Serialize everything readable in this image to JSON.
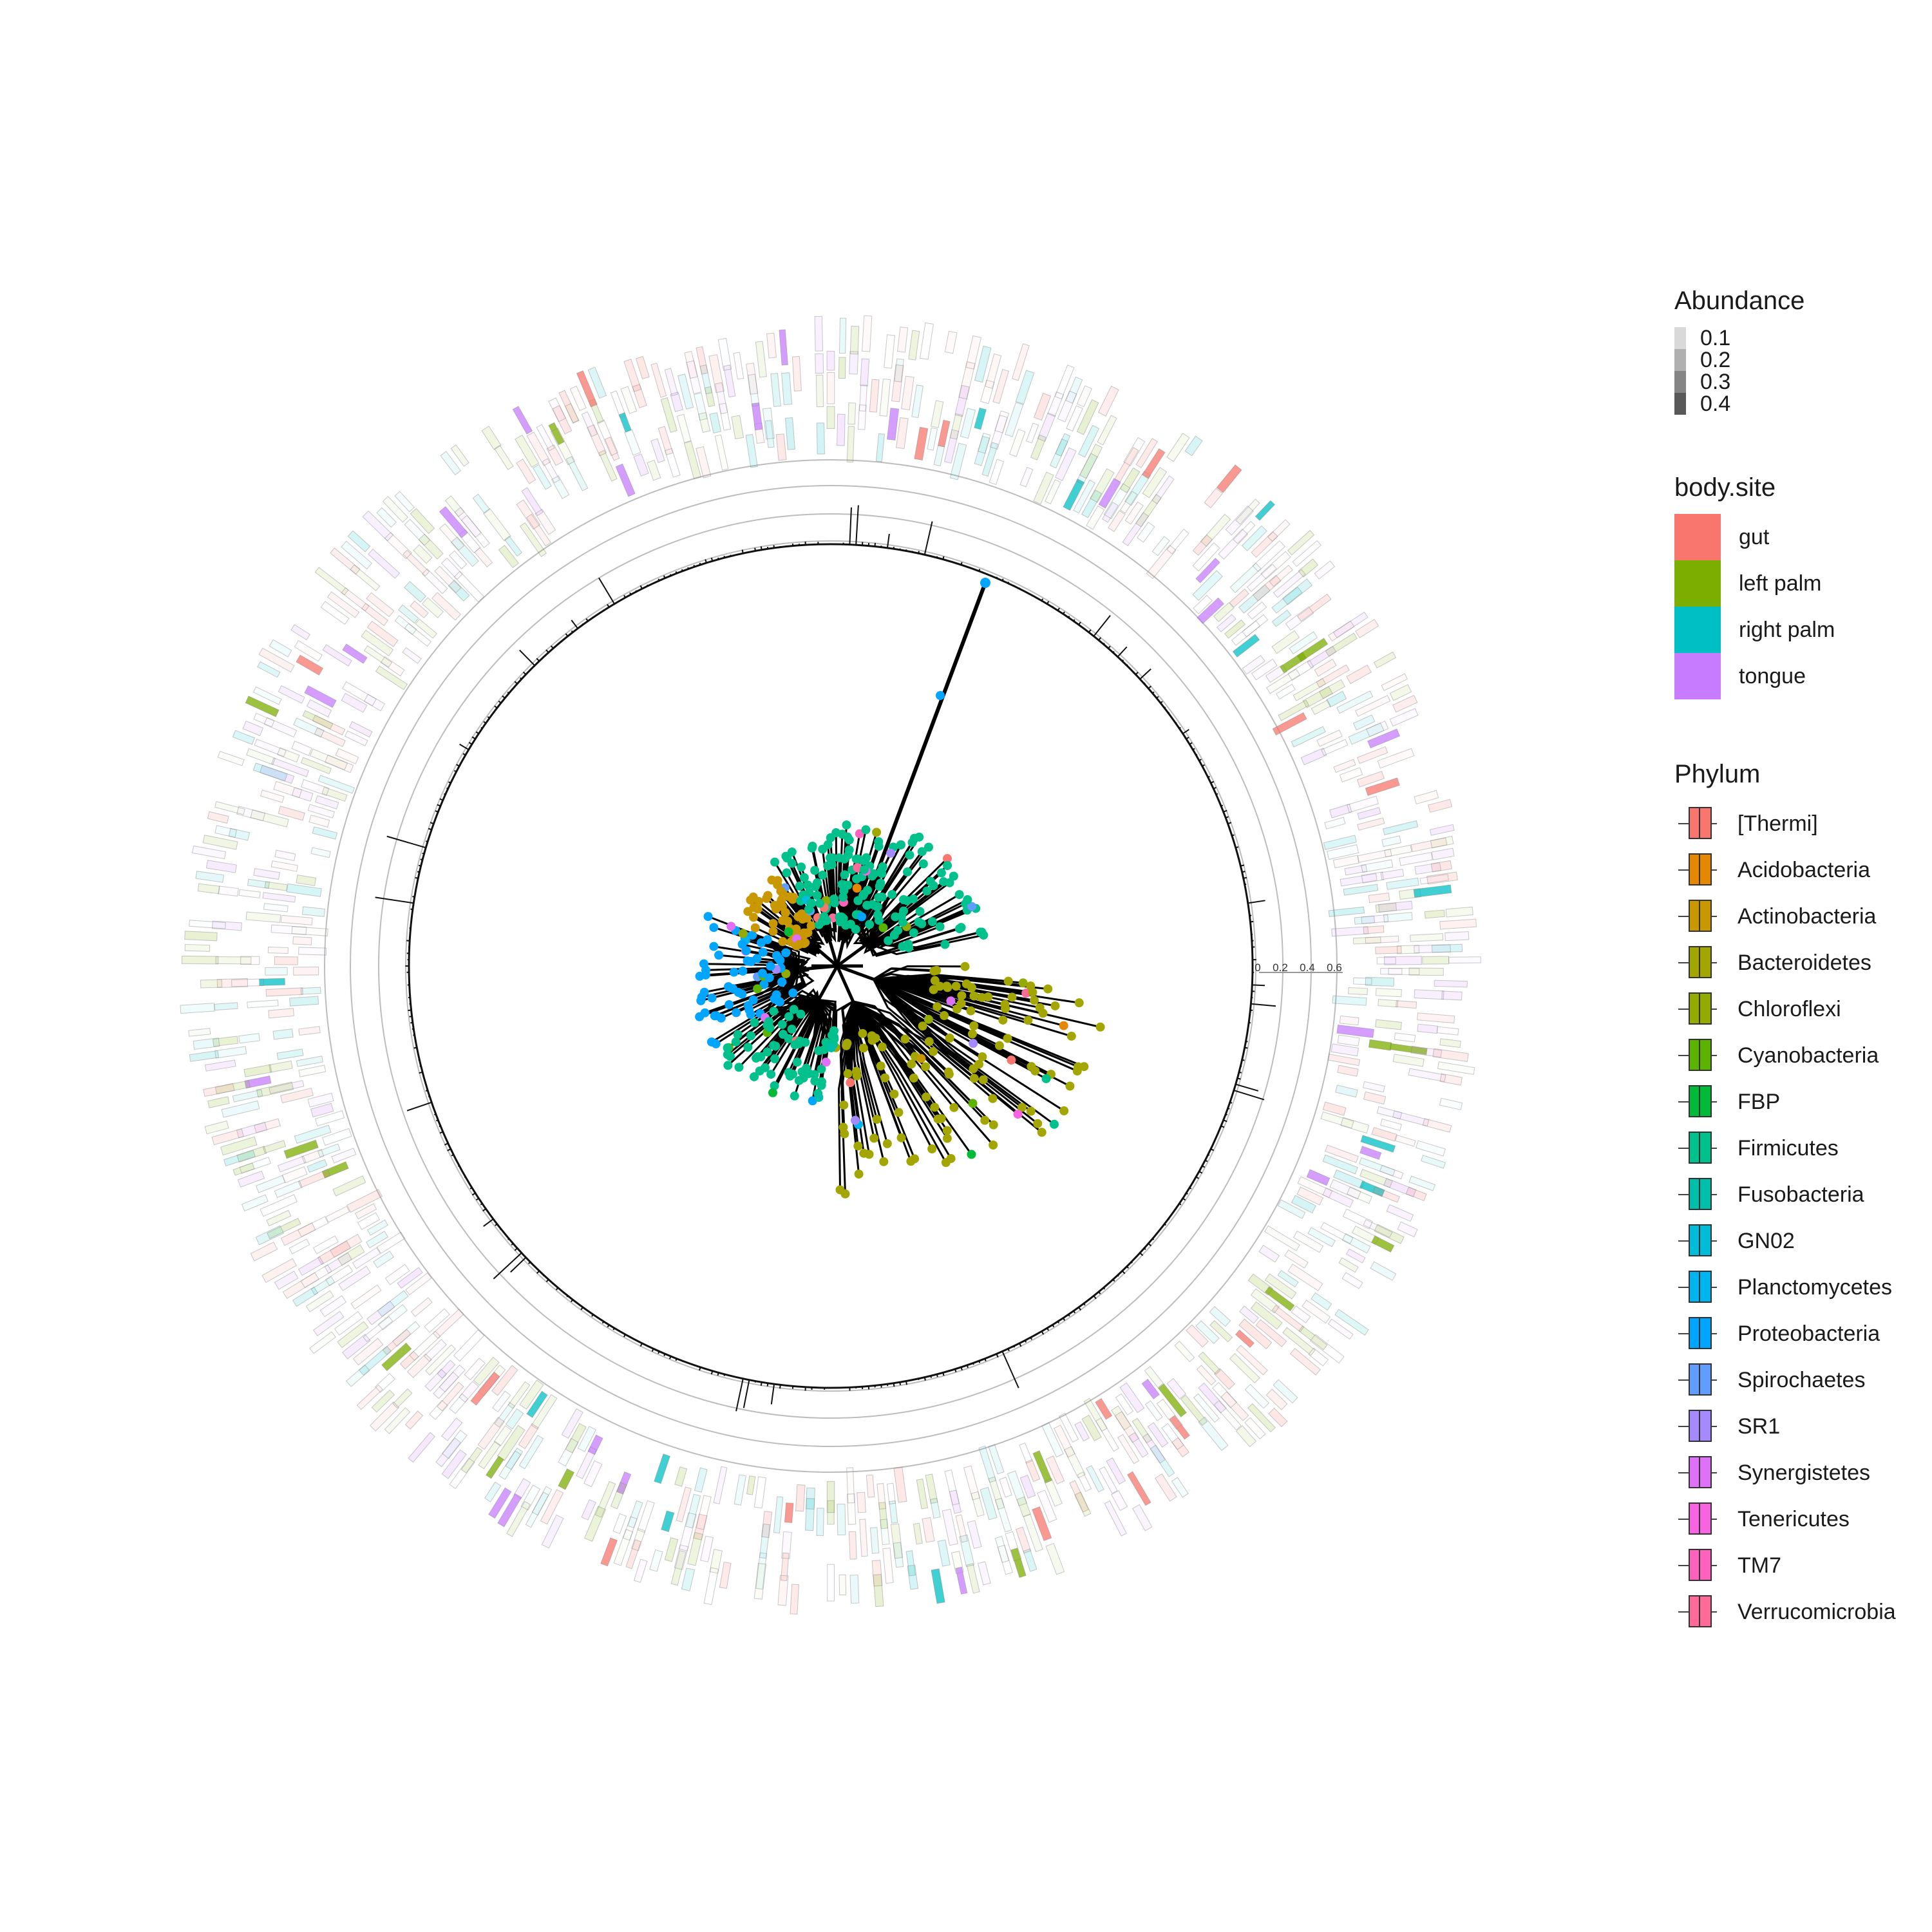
{
  "chart_data": {
    "type": "circular phylogenetic tree with heatmap rings",
    "scale_ticks": [
      "0",
      "0.2",
      "0.4",
      "0.6"
    ],
    "legends": {
      "abundance": {
        "title": "Abundance",
        "levels": [
          "0.1",
          "0.2",
          "0.3",
          "0.4"
        ],
        "colors": [
          "#d9d9d9",
          "#b0b0b0",
          "#858585",
          "#595959"
        ]
      },
      "body_site": {
        "title": "body.site",
        "items": [
          {
            "label": "gut",
            "color": "#F8766D"
          },
          {
            "label": "left palm",
            "color": "#7CAE00"
          },
          {
            "label": "right palm",
            "color": "#00BFC4"
          },
          {
            "label": "tongue",
            "color": "#C77CFF"
          }
        ]
      },
      "phylum": {
        "title": "Phylum",
        "items": [
          {
            "label": "[Thermi]",
            "color": "#F8766D"
          },
          {
            "label": "Acidobacteria",
            "color": "#E58700"
          },
          {
            "label": "Actinobacteria",
            "color": "#C99800"
          },
          {
            "label": "Bacteroidetes",
            "color": "#A3A500"
          },
          {
            "label": "Chloroflexi",
            "color": "#93AA00"
          },
          {
            "label": "Cyanobacteria",
            "color": "#5BB300"
          },
          {
            "label": "FBP",
            "color": "#00BA38"
          },
          {
            "label": "Firmicutes",
            "color": "#00C08B"
          },
          {
            "label": "Fusobacteria",
            "color": "#00BFAA"
          },
          {
            "label": "GN02",
            "color": "#00BCD8"
          },
          {
            "label": "Planctomycetes",
            "color": "#00B4EF"
          },
          {
            "label": "Proteobacteria",
            "color": "#00A5FF"
          },
          {
            "label": "Spirochaetes",
            "color": "#619CFF"
          },
          {
            "label": "SR1",
            "color": "#A58AFF"
          },
          {
            "label": "Synergistetes",
            "color": "#DF70F8"
          },
          {
            "label": "Tenericutes",
            "color": "#F763E0"
          },
          {
            "label": "TM7",
            "color": "#FF62BC"
          },
          {
            "label": "Verrucomicrobia",
            "color": "#FF6A98"
          }
        ]
      }
    }
  }
}
